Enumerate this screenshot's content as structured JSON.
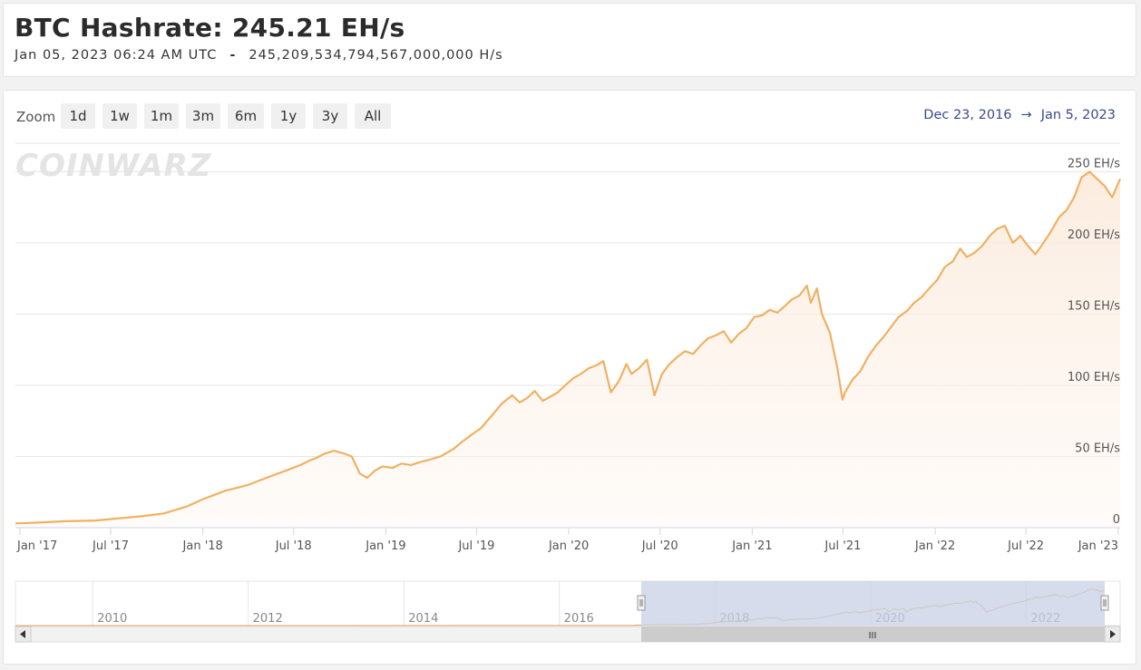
{
  "header": {
    "title": "BTC Hashrate: 245.21 EH/s",
    "timestamp": "Jan 05, 2023 06:24 AM UTC",
    "dash": "-",
    "raw_hashrate": "245,209,534,794,567,000,000 H/s"
  },
  "toolbar": {
    "zoom_label": "Zoom",
    "zoom_buttons": [
      "1d",
      "1w",
      "1m",
      "3m",
      "6m",
      "1y",
      "3y",
      "All"
    ],
    "range_from": "Dec 23, 2016",
    "range_arrow": "→",
    "range_to": "Jan 5, 2023"
  },
  "watermark": "COINWARZ",
  "colors": {
    "line": "#f0b162",
    "fill_top": "#fbeadb",
    "navigator_mask": "#c8d0e6",
    "range_text": "#3a4a8c"
  },
  "chart_data": {
    "type": "area",
    "title": "BTC Hashrate: 245.21 EH/s",
    "ylabel": "",
    "ylim": [
      0,
      250
    ],
    "y_ticks": [
      0,
      50,
      100,
      150,
      200,
      250
    ],
    "y_tick_labels": [
      "0",
      "50 EH/s",
      "100 EH/s",
      "150 EH/s",
      "200 EH/s",
      "250 EH/s"
    ],
    "x_tick_labels": [
      "Jan '17",
      "Jul '17",
      "Jan '18",
      "Jul '18",
      "Jan '19",
      "Jul '19",
      "Jan '20",
      "Jul '20",
      "Jan '21",
      "Jul '21",
      "Jan '22",
      "Jul '22",
      "Jan '23"
    ],
    "x_tick_dates": [
      "2017-01-01",
      "2017-07-01",
      "2018-01-01",
      "2018-07-01",
      "2019-01-01",
      "2019-07-01",
      "2020-01-01",
      "2020-07-01",
      "2021-01-01",
      "2021-07-01",
      "2022-01-01",
      "2022-07-01",
      "2023-01-01"
    ],
    "x_range": [
      "2016-12-23",
      "2023-01-05"
    ],
    "series": [
      {
        "x": [
          "2016-12-23",
          "2017-02-01",
          "2017-04-01",
          "2017-06-01",
          "2017-07-15",
          "2017-09-01",
          "2017-10-15",
          "2017-12-01",
          "2018-01-01",
          "2018-02-15",
          "2018-04-01",
          "2018-05-15",
          "2018-06-15",
          "2018-07-15",
          "2018-08-01",
          "2018-08-15",
          "2018-09-01",
          "2018-09-20",
          "2018-10-10",
          "2018-10-25",
          "2018-11-10",
          "2018-11-25",
          "2018-12-10",
          "2018-12-25",
          "2019-01-15",
          "2019-02-01",
          "2019-02-20",
          "2019-03-10",
          "2019-04-01",
          "2019-04-20",
          "2019-05-15",
          "2019-06-01",
          "2019-06-20",
          "2019-07-10",
          "2019-08-01",
          "2019-08-20",
          "2019-09-10",
          "2019-09-25",
          "2019-10-10",
          "2019-10-25",
          "2019-11-10",
          "2019-11-25",
          "2019-12-10",
          "2019-12-25",
          "2020-01-10",
          "2020-01-25",
          "2020-02-10",
          "2020-02-25",
          "2020-03-10",
          "2020-03-25",
          "2020-04-10",
          "2020-04-25",
          "2020-05-05",
          "2020-05-20",
          "2020-06-05",
          "2020-06-20",
          "2020-07-05",
          "2020-07-20",
          "2020-08-05",
          "2020-08-20",
          "2020-09-05",
          "2020-09-20",
          "2020-10-05",
          "2020-10-20",
          "2020-11-05",
          "2020-11-20",
          "2020-12-05",
          "2020-12-20",
          "2021-01-05",
          "2021-01-20",
          "2021-02-05",
          "2021-02-20",
          "2021-03-05",
          "2021-03-20",
          "2021-04-05",
          "2021-04-20",
          "2021-04-28",
          "2021-05-10",
          "2021-05-20",
          "2021-06-05",
          "2021-06-20",
          "2021-06-30",
          "2021-07-05",
          "2021-07-20",
          "2021-08-05",
          "2021-08-20",
          "2021-09-05",
          "2021-09-20",
          "2021-10-05",
          "2021-10-20",
          "2021-11-05",
          "2021-11-20",
          "2021-12-05",
          "2021-12-20",
          "2022-01-05",
          "2022-01-20",
          "2022-02-05",
          "2022-02-20",
          "2022-03-05",
          "2022-03-20",
          "2022-04-05",
          "2022-04-20",
          "2022-05-05",
          "2022-05-20",
          "2022-06-05",
          "2022-06-20",
          "2022-07-05",
          "2022-07-20",
          "2022-08-05",
          "2022-08-20",
          "2022-09-05",
          "2022-09-20",
          "2022-10-05",
          "2022-10-20",
          "2022-11-05",
          "2022-11-20",
          "2022-12-05",
          "2022-12-20",
          "2023-01-05"
        ],
        "values": [
          3,
          3.5,
          4.5,
          5,
          6.5,
          8,
          10,
          15,
          20,
          26,
          30,
          36,
          40,
          44,
          47,
          49,
          52,
          54,
          52,
          50,
          38,
          35,
          40,
          43,
          42,
          45,
          44,
          46,
          48,
          50,
          55,
          60,
          65,
          70,
          79,
          87,
          93,
          88,
          91,
          96,
          89,
          92,
          95,
          100,
          105,
          108,
          112,
          114,
          117,
          95,
          103,
          115,
          108,
          112,
          118,
          93,
          108,
          115,
          120,
          124,
          122,
          128,
          133,
          135,
          138,
          130,
          136,
          140,
          148,
          149,
          153,
          151,
          155,
          160,
          163,
          170,
          158,
          168,
          150,
          137,
          112,
          90,
          95,
          104,
          110,
          120,
          128,
          134,
          141,
          148,
          152,
          158,
          162,
          168,
          174,
          183,
          187,
          196,
          190,
          193,
          198,
          205,
          210,
          212,
          200,
          205,
          198,
          192,
          200,
          208,
          218,
          223,
          232,
          246,
          250,
          245,
          240,
          232,
          245
        ]
      }
    ]
  },
  "navigator": {
    "year_labels": [
      "2010",
      "2012",
      "2014",
      "2016",
      "2018",
      "2020",
      "2022"
    ],
    "scroll_grip": "III"
  }
}
